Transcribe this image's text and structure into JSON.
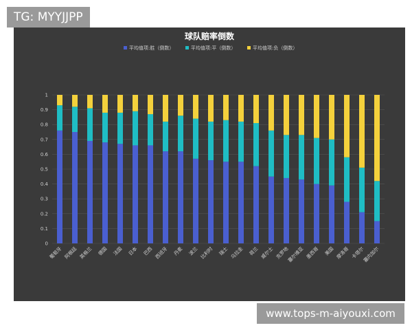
{
  "watermark": {
    "tg_text": "TG: MYYJJPP",
    "url_text": "www.tops-m-aiyouxi.com"
  },
  "colors": {
    "background": "#3a3a3a",
    "win": "#4a5fd0",
    "draw": "#1fbdc4",
    "loss": "#f4d13c",
    "text": "#cfcfcf"
  },
  "chart_data": {
    "type": "bar",
    "stacked": true,
    "title": "球队赔率倒数",
    "xlabel": "",
    "ylabel": "",
    "ylim": [
      0,
      1
    ],
    "yticks": [
      "0",
      "0.1",
      "0.2",
      "0.3",
      "0.4",
      "0.5",
      "0.6",
      "0.7",
      "0.8",
      "0.9",
      "1"
    ],
    "legend_position": "top-center",
    "categories": [
      "葡萄牙",
      "阿根廷",
      "英格兰",
      "德国",
      "法国",
      "日本",
      "巴西",
      "西班牙",
      "丹麦",
      "波兰",
      "比利时",
      "瑞士",
      "乌拉圭",
      "荷兰",
      "威尔士",
      "克罗地",
      "塞尔维亚",
      "墨西哥",
      "美国",
      "摩洛哥",
      "卡塔尔",
      "塞内加尔"
    ],
    "series": [
      {
        "name": "平均值项:胜（倒数）",
        "values": [
          0.76,
          0.75,
          0.69,
          0.68,
          0.67,
          0.66,
          0.66,
          0.62,
          0.62,
          0.57,
          0.56,
          0.55,
          0.55,
          0.52,
          0.45,
          0.44,
          0.43,
          0.4,
          0.39,
          0.28,
          0.21,
          0.15
        ]
      },
      {
        "name": "平均值项:平（倒数）",
        "values": [
          0.17,
          0.17,
          0.22,
          0.2,
          0.21,
          0.23,
          0.21,
          0.2,
          0.24,
          0.27,
          0.26,
          0.28,
          0.27,
          0.29,
          0.31,
          0.29,
          0.3,
          0.31,
          0.31,
          0.3,
          0.3,
          0.27
        ]
      },
      {
        "name": "平均值项:负（倒数）",
        "values": [
          0.07,
          0.08,
          0.09,
          0.12,
          0.12,
          0.11,
          0.13,
          0.18,
          0.14,
          0.16,
          0.18,
          0.17,
          0.18,
          0.19,
          0.24,
          0.27,
          0.27,
          0.29,
          0.3,
          0.42,
          0.49,
          0.58
        ]
      }
    ]
  }
}
